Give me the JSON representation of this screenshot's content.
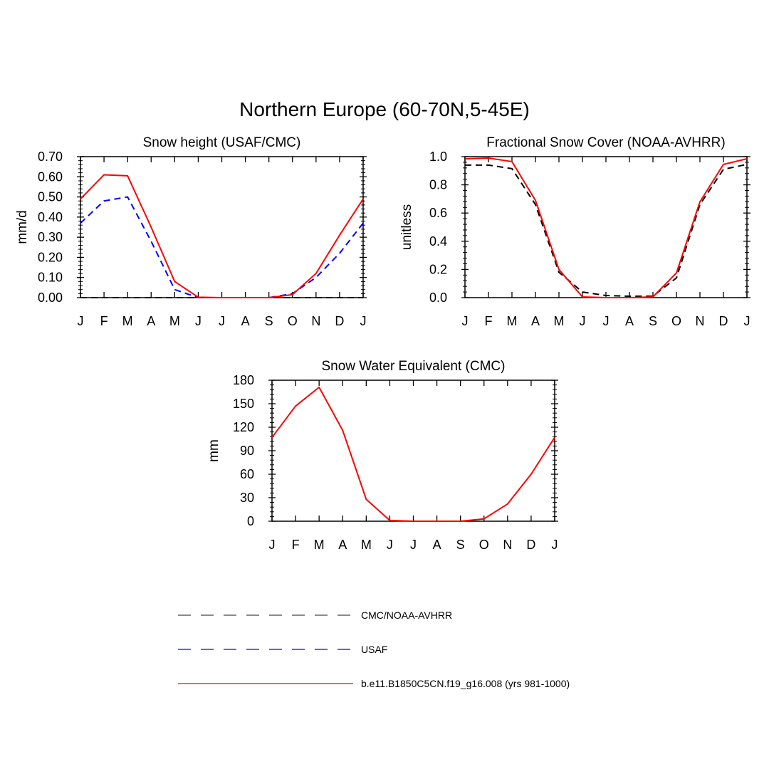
{
  "title": "Northern Europe (60-70N,5-45E)",
  "months": [
    "J",
    "F",
    "M",
    "A",
    "M",
    "J",
    "J",
    "A",
    "S",
    "O",
    "N",
    "D",
    "J"
  ],
  "colors": {
    "model": "#ff0000",
    "usaf": "#0000ff",
    "obs": "#000000"
  },
  "chart_data": [
    {
      "type": "line",
      "title": "Snow height (USAF/CMC)",
      "ylabel": "mm/d",
      "ylim": [
        0,
        0.7
      ],
      "yticks": [
        "0.00",
        "0.10",
        "0.20",
        "0.30",
        "0.40",
        "0.50",
        "0.60",
        "0.70"
      ],
      "series": [
        {
          "name": "CMC/NOAA-AVHRR",
          "style": "dashed",
          "color": "#000000",
          "values": [
            0,
            0,
            0,
            0,
            0,
            0,
            0,
            0,
            0,
            0,
            0,
            0,
            0
          ]
        },
        {
          "name": "USAF",
          "style": "dashed",
          "color": "#0000ff",
          "values": [
            0.37,
            0.48,
            0.5,
            0.28,
            0.04,
            0.0,
            0.0,
            0.0,
            0.0,
            0.02,
            0.1,
            0.22,
            0.37
          ]
        },
        {
          "name": "b.e11.B1850C5CN.f19_g16.008 (yrs 981-1000)",
          "style": "solid",
          "color": "#ff0000",
          "values": [
            0.49,
            0.61,
            0.605,
            0.35,
            0.08,
            0.002,
            0.0,
            0.0,
            0.0,
            0.015,
            0.12,
            0.31,
            0.49
          ]
        }
      ]
    },
    {
      "type": "line",
      "title": "Fractional Snow Cover (NOAA-AVHRR)",
      "ylabel": "unitless",
      "ylim": [
        0,
        1.0
      ],
      "yticks": [
        "0.0",
        "0.2",
        "0.4",
        "0.6",
        "0.8",
        "1.0"
      ],
      "series": [
        {
          "name": "CMC/NOAA-AVHRR",
          "style": "dashed",
          "color": "#000000",
          "values": [
            0.94,
            0.94,
            0.915,
            0.66,
            0.18,
            0.04,
            0.015,
            0.01,
            0.01,
            0.14,
            0.66,
            0.91,
            0.945
          ]
        },
        {
          "name": "b.e11.B1850C5CN.f19_g16.008 (yrs 981-1000)",
          "style": "solid",
          "color": "#ff0000",
          "values": [
            0.985,
            0.99,
            0.965,
            0.69,
            0.2,
            0.005,
            0.0,
            0.0,
            0.005,
            0.175,
            0.68,
            0.945,
            0.985
          ]
        }
      ]
    },
    {
      "type": "line",
      "title": "Snow Water Equivalent (CMC)",
      "ylabel": "mm",
      "ylim": [
        0,
        180
      ],
      "yticks": [
        "0",
        "30",
        "60",
        "90",
        "120",
        "150",
        "180"
      ],
      "series": [
        {
          "name": "b.e11.B1850C5CN.f19_g16.008 (yrs 981-1000)",
          "style": "solid",
          "color": "#ff0000",
          "values": [
            107,
            147,
            171,
            116,
            28,
            1,
            0,
            0,
            0,
            3,
            22,
            60,
            107
          ]
        }
      ]
    }
  ],
  "legend": [
    {
      "label": "CMC/NOAA-AVHRR",
      "style": "dashed",
      "color": "#444444"
    },
    {
      "label": "USAF",
      "style": "dashed",
      "color": "#0000ff"
    },
    {
      "label": "b.e11.B1850C5CN.f19_g16.008 (yrs 981-1000)",
      "style": "solid",
      "color": "#ff0000"
    }
  ]
}
